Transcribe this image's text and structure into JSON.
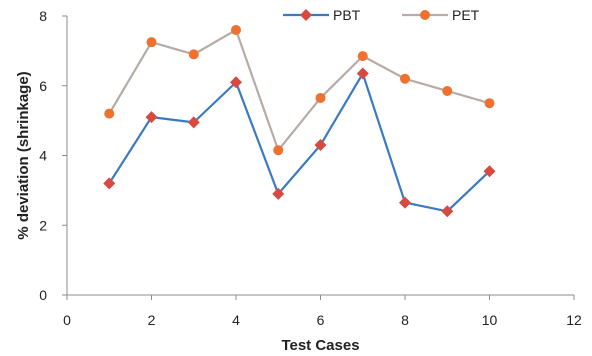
{
  "chart_data": {
    "type": "line",
    "xlabel": "Test Cases",
    "ylabel": "% deviation (shrinkage)",
    "xlim": [
      0,
      12
    ],
    "ylim": [
      0,
      8
    ],
    "xticks": [
      0,
      2,
      4,
      6,
      8,
      10,
      12
    ],
    "yticks": [
      0,
      2,
      4,
      6,
      8
    ],
    "grid": false,
    "legend_position": "top-center",
    "series": [
      {
        "name": "PBT",
        "line_color": "#3a7ac3",
        "marker_color": "#d84a3f",
        "marker": "diamond",
        "x": [
          1,
          2,
          3,
          4,
          5,
          6,
          7,
          8,
          9,
          10
        ],
        "values": [
          3.2,
          5.1,
          4.95,
          6.1,
          2.9,
          4.3,
          6.35,
          2.65,
          2.4,
          3.55
        ]
      },
      {
        "name": "PET",
        "line_color": "#b6aca5",
        "marker_color": "#ee7130",
        "marker": "circle",
        "x": [
          1,
          2,
          3,
          4,
          5,
          6,
          7,
          8,
          9,
          10
        ],
        "values": [
          5.2,
          7.25,
          6.9,
          7.6,
          4.15,
          5.65,
          6.85,
          6.2,
          5.85,
          5.5
        ]
      }
    ]
  }
}
